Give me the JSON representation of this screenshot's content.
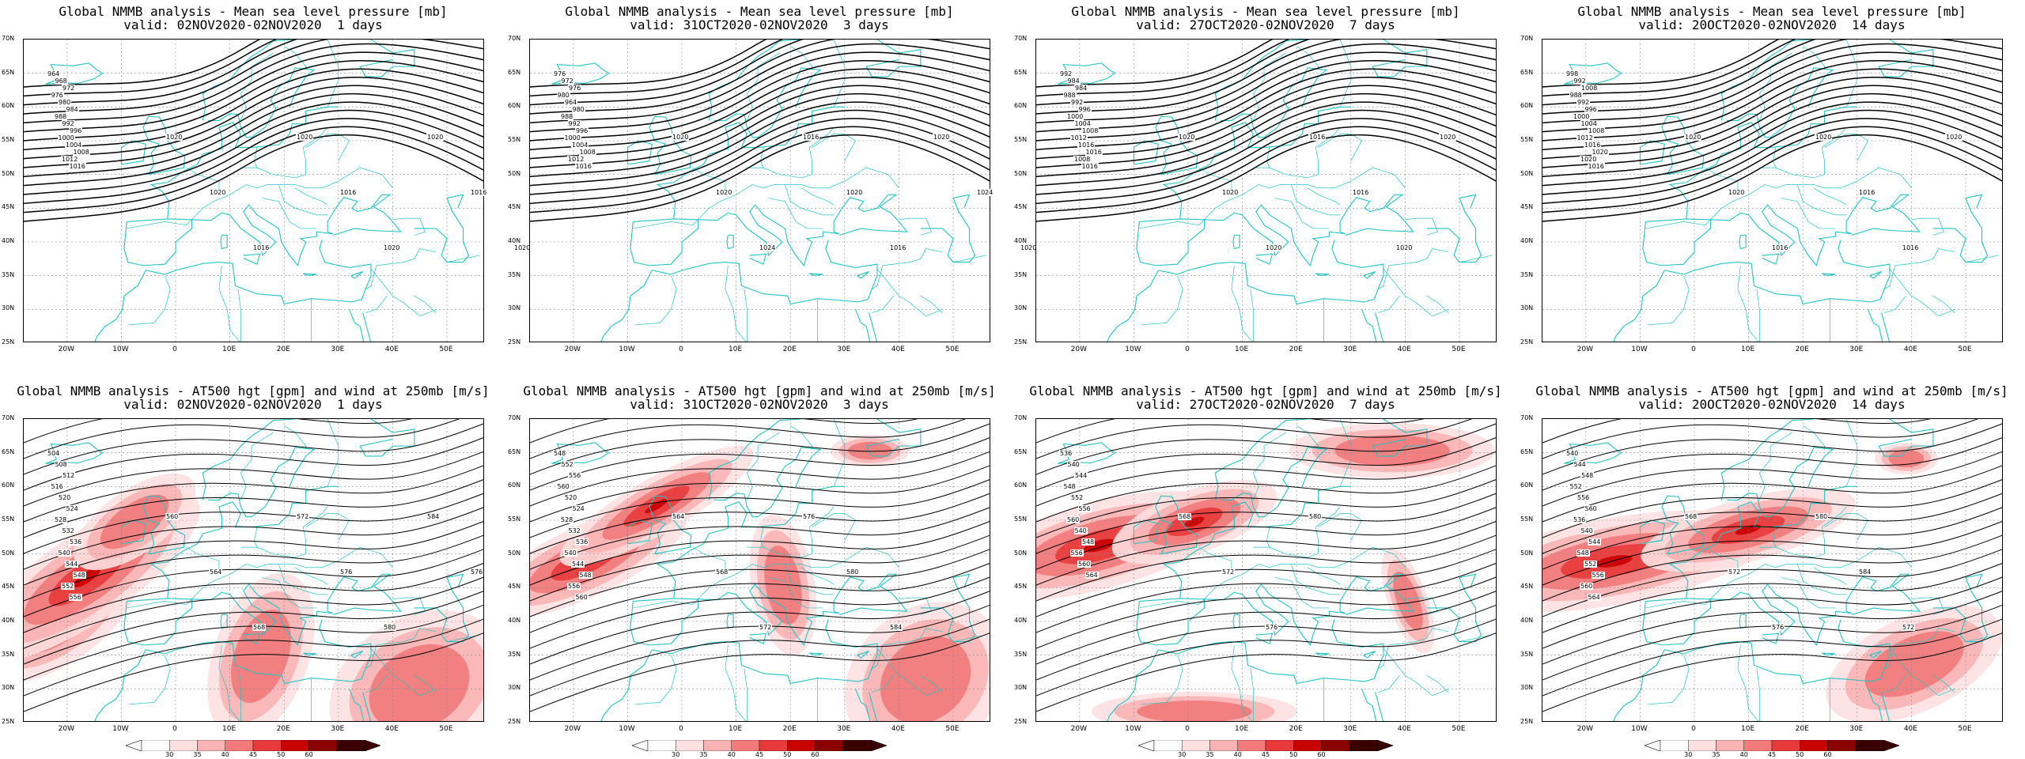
{
  "mslp_panels": [
    {
      "title": "Global NMMB analysis - Mean sea level pressure [mb]",
      "valid": "valid: 02NOV2020-02NOV2020  1 days",
      "labels": [
        "964",
        "968",
        "972",
        "976",
        "980",
        "984",
        "988",
        "992",
        "996",
        "1000",
        "1004",
        "1008",
        "1012",
        "1016",
        "1020",
        "1020",
        "1016",
        "1020",
        "1016",
        "1020",
        "1020",
        "1016",
        "1020"
      ]
    },
    {
      "title": "Global NMMB analysis - Mean sea level pressure [mb]",
      "valid": "valid: 31OCT2020-02NOV2020  3 days",
      "labels": [
        "976",
        "972",
        "976",
        "980",
        "964",
        "980",
        "988",
        "992",
        "996",
        "1000",
        "1004",
        "1008",
        "1012",
        "1016",
        "1020",
        "1020",
        "1024",
        "1016",
        "1020",
        "1016",
        "1020",
        "1024",
        "1020",
        "1016",
        "1020"
      ]
    },
    {
      "title": "Global NMMB analysis - Mean sea level pressure [mb]",
      "valid": "valid: 27OCT2020-02NOV2020  7 days",
      "labels": [
        "992",
        "984",
        "984",
        "988",
        "992",
        "996",
        "1000",
        "1004",
        "1008",
        "1012",
        "1016",
        "1016",
        "1008",
        "1016",
        "1020",
        "1020",
        "1020",
        "1016",
        "1016",
        "1020",
        "1020"
      ]
    },
    {
      "title": "Global NMMB analysis - Mean sea level pressure [mb]",
      "valid": "valid: 20OCT2020-02NOV2020  14 days",
      "labels": [
        "998",
        "992",
        "1008",
        "988",
        "992",
        "996",
        "1000",
        "1004",
        "1008",
        "1012",
        "1016",
        "1020",
        "1020",
        "1016",
        "1020",
        "1020",
        "1016",
        "1020",
        "1016",
        "1016",
        "1020"
      ]
    }
  ],
  "z500_panels": [
    {
      "title": "Global NMMB analysis - AT500 hgt [gpm] and wind at 250mb [m/s]",
      "valid": "valid: 02NOV2020-02NOV2020  1 days",
      "labels": [
        "504",
        "508",
        "512",
        "516",
        "520",
        "524",
        "528",
        "532",
        "536",
        "540",
        "544",
        "548",
        "552",
        "556",
        "560",
        "564",
        "568",
        "572",
        "576",
        "580",
        "584",
        "576"
      ]
    },
    {
      "title": "Global NMMB analysis - AT500 hgt [gpm] and wind at 250mb [m/s]",
      "valid": "valid: 31OCT2020-02NOV2020  3 days",
      "labels": [
        "548",
        "552",
        "556",
        "560",
        "520",
        "524",
        "528",
        "532",
        "536",
        "540",
        "544",
        "548",
        "556",
        "560",
        "564",
        "568",
        "572",
        "576",
        "580",
        "584"
      ]
    },
    {
      "title": "Global NMMB analysis - AT500 hgt [gpm] and wind at 250mb [m/s]",
      "valid": "valid: 27OCT2020-02NOV2020  7 days",
      "labels": [
        "536",
        "540",
        "544",
        "548",
        "552",
        "556",
        "560",
        "540",
        "548",
        "556",
        "560",
        "564",
        "568",
        "572",
        "576",
        "580"
      ]
    },
    {
      "title": "Global NMMB analysis - AT500 hgt [gpm] and wind at 250mb [m/s]",
      "valid": "valid: 20OCT2020-02NOV2020  14 days",
      "labels": [
        "540",
        "544",
        "548",
        "552",
        "556",
        "560",
        "536",
        "540",
        "544",
        "548",
        "552",
        "556",
        "560",
        "564",
        "568",
        "572",
        "576",
        "580",
        "584",
        "572"
      ]
    }
  ],
  "lat_labels": [
    "70N",
    "65N",
    "60N",
    "55N",
    "50N",
    "45N",
    "40N",
    "35N",
    "30N",
    "25N"
  ],
  "lon_labels": [
    "20W",
    "10W",
    "0",
    "10E",
    "20E",
    "30E",
    "40E",
    "50E"
  ],
  "colorbar": {
    "ticks": [
      "30",
      "35",
      "40",
      "45",
      "50",
      "60"
    ],
    "colors": [
      "#ffffff",
      "#fde0e0",
      "#f9b3b3",
      "#f27a7a",
      "#e83a3a",
      "#c80000",
      "#8b0000",
      "#3a0000"
    ]
  },
  "colors": {
    "coast": "#22c4c4",
    "contour": "#000000",
    "grid": "#888888"
  }
}
